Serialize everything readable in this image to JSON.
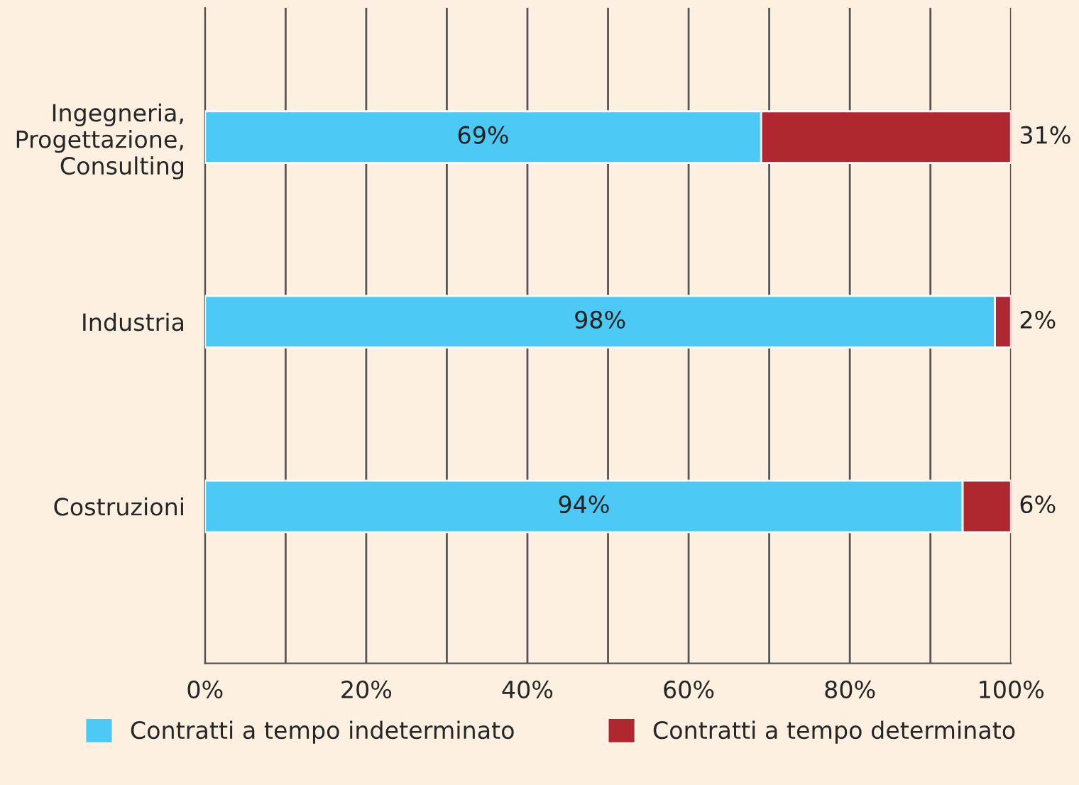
{
  "chart_data": {
    "type": "bar",
    "orientation": "horizontal",
    "stacked": true,
    "categories": [
      "Ingegneria,\nProgettazione,\nConsulting",
      "Industria",
      "Costruzioni"
    ],
    "series": [
      {
        "name": "Contratti a tempo indeterminato",
        "color": "#4cc9f4",
        "values": [
          69,
          98,
          94
        ]
      },
      {
        "name": "Contratti a tempo determinato",
        "color": "#b0282f",
        "values": [
          31,
          2,
          6
        ]
      }
    ],
    "xlim": [
      0,
      100
    ],
    "xticks": [
      {
        "value": 0,
        "label": "0%"
      },
      {
        "value": 10,
        "label": null
      },
      {
        "value": 20,
        "label": "20%"
      },
      {
        "value": 30,
        "label": null
      },
      {
        "value": 40,
        "label": "40%"
      },
      {
        "value": 50,
        "label": null
      },
      {
        "value": 60,
        "label": "60%"
      },
      {
        "value": 70,
        "label": null
      },
      {
        "value": 80,
        "label": "80%"
      },
      {
        "value": 90,
        "label": null
      },
      {
        "value": 100,
        "label": "100%"
      }
    ],
    "value_labels": [
      [
        "69%",
        "98%",
        "94%"
      ],
      [
        "31%",
        "2%",
        "6%"
      ]
    ],
    "grid": "x",
    "legend": "bottom"
  }
}
